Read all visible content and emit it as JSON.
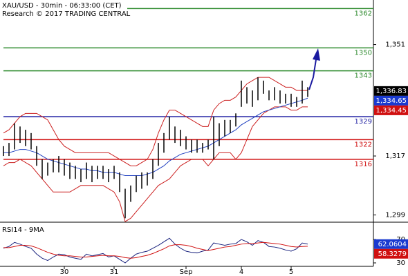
{
  "chart_data": [
    {
      "type": "ohlc",
      "title": "XAU/USD - 30min - 06:33:00 (CET)",
      "subtitle": "Research © 2017 TRADING CENTRAL",
      "ylim": [
        1296.8,
        1364.6
      ],
      "yticks": [
        {
          "value": 1351,
          "label": "1,351"
        },
        {
          "value": 1317,
          "label": "1,317"
        },
        {
          "value": 1299,
          "label": "1,299"
        }
      ],
      "high": [
        1320,
        1321,
        1327,
        1326,
        1325,
        1324,
        1320,
        1316,
        1315,
        1316,
        1317,
        1316,
        1315,
        1314,
        1313,
        1315,
        1314,
        1314,
        1314,
        1313,
        1314,
        1312,
        1307,
        1308,
        1311,
        1312,
        1312,
        1316,
        1321,
        1324,
        1329,
        1326,
        1325,
        1323,
        1322,
        1322,
        1321,
        1322,
        1329,
        1327,
        1328,
        1328,
        1330,
        1340,
        1338,
        1337,
        1341,
        1340,
        1337,
        1338,
        1337,
        1336,
        1336,
        1335,
        1340,
        1338
      ],
      "low": [
        1317,
        1317,
        1319,
        1321,
        1320,
        1319,
        1314,
        1310,
        1311,
        1312,
        1312,
        1311,
        1310,
        1310,
        1309,
        1310,
        1309,
        1310,
        1310,
        1309,
        1310,
        1306,
        1298,
        1303,
        1306,
        1307,
        1308,
        1310,
        1314,
        1318,
        1322,
        1321,
        1320,
        1319,
        1318,
        1318,
        1318,
        1319,
        1316,
        1320,
        1323,
        1324,
        1326,
        1332,
        1333,
        1332,
        1334,
        1336,
        1334,
        1334,
        1333,
        1333,
        1332,
        1332,
        1333,
        1335
      ],
      "bar_color": "#000000",
      "ma": {
        "color": "#2040c0",
        "values": [
          1318,
          1318,
          1318.5,
          1319,
          1319,
          1318.5,
          1318,
          1317,
          1316,
          1315.5,
          1315,
          1314.5,
          1314,
          1313.5,
          1313,
          1313,
          1312.5,
          1312.5,
          1312,
          1312,
          1312,
          1311.5,
          1311,
          1311,
          1311,
          1311,
          1311.5,
          1312,
          1313,
          1314,
          1315.5,
          1316.5,
          1317.5,
          1318,
          1318.5,
          1319,
          1319.5,
          1320,
          1321,
          1322,
          1323,
          1324,
          1325,
          1326.5,
          1327.5,
          1328.5,
          1329.5,
          1330.5,
          1331,
          1331.5,
          1332,
          1332.5,
          1333,
          1333.5,
          1334,
          1334.65
        ]
      },
      "upper_band": {
        "color": "#cc2020",
        "values": [
          1324,
          1325,
          1327,
          1329,
          1330,
          1330,
          1330,
          1329,
          1328,
          1325,
          1322,
          1320,
          1319,
          1318,
          1318,
          1318,
          1318,
          1318,
          1318,
          1318,
          1317,
          1316,
          1315,
          1314,
          1314,
          1315,
          1316,
          1319,
          1324,
          1328,
          1331,
          1331,
          1330,
          1329,
          1328,
          1327,
          1326,
          1326,
          1331,
          1333,
          1334,
          1334,
          1335,
          1337,
          1339,
          1340,
          1341,
          1341,
          1341,
          1340,
          1339,
          1338,
          1338,
          1337,
          1337,
          1337
        ]
      },
      "lower_band": {
        "color": "#cc2020",
        "values": [
          1314,
          1315,
          1315,
          1316,
          1315,
          1314,
          1312,
          1310,
          1308,
          1306,
          1306,
          1306,
          1306,
          1307,
          1308,
          1308,
          1308,
          1308,
          1308,
          1307,
          1306,
          1303,
          1297,
          1298,
          1300,
          1302,
          1304,
          1306,
          1308,
          1309,
          1310,
          1312,
          1314,
          1315,
          1316,
          1316,
          1316,
          1314,
          1316,
          1318,
          1318,
          1318,
          1316,
          1318,
          1322,
          1326,
          1328,
          1330,
          1331,
          1332,
          1332,
          1332,
          1331,
          1331,
          1332,
          1332
        ]
      },
      "levels": [
        {
          "value": 1362,
          "color": "#2e8b2e"
        },
        {
          "value": 1350,
          "color": "#2e8b2e"
        },
        {
          "value": 1343,
          "color": "#2e8b2e"
        },
        {
          "value": 1329,
          "color": "#1a1aa0"
        },
        {
          "value": 1322,
          "color": "#d01010"
        },
        {
          "value": 1316,
          "color": "#d01010"
        }
      ],
      "price_labels": [
        {
          "value": 1336.83,
          "label": "1,336.83",
          "color": "#000000"
        },
        {
          "value": 1334.65,
          "label": "1,334.65",
          "color": "#1a3ad0"
        },
        {
          "value": 1334.45,
          "label": "1,334.45",
          "color": "#d01010"
        }
      ]
    },
    {
      "type": "line",
      "title": "RSI14 - 9MA",
      "ylim": [
        25.3,
        95.9
      ],
      "yticks": [
        70,
        30
      ],
      "categories": [
        null,
        null,
        null,
        null,
        null,
        null,
        null,
        null,
        null,
        null,
        null,
        "30",
        null,
        null,
        null,
        null,
        null,
        null,
        null,
        null,
        "31",
        null,
        null,
        null,
        null,
        null,
        null,
        null,
        null,
        null,
        null,
        null,
        null,
        "Sep",
        null,
        null,
        null,
        null,
        null,
        null,
        null,
        null,
        null,
        "4",
        null,
        null,
        null,
        null,
        null,
        null,
        null,
        null,
        "5",
        null,
        null,
        null
      ],
      "series": [
        {
          "color": "#1a237e",
          "values": [
            55,
            58,
            65,
            62,
            58,
            55,
            45,
            38,
            34,
            40,
            45,
            44,
            40,
            38,
            36,
            45,
            42,
            44,
            46,
            40,
            42,
            36,
            30,
            38,
            45,
            48,
            50,
            55,
            60,
            66,
            72,
            62,
            55,
            50,
            48,
            47,
            50,
            52,
            64,
            62,
            60,
            62,
            63,
            70,
            66,
            60,
            68,
            65,
            58,
            57,
            55,
            52,
            50,
            54,
            64,
            62.0604
          ]
        },
        {
          "color": "#d01010",
          "values": [
            56,
            56,
            58,
            60,
            60,
            59,
            56,
            52,
            48,
            45,
            43,
            42,
            42,
            41,
            40,
            40,
            41,
            42,
            43,
            42,
            42,
            41,
            39,
            38,
            39,
            41,
            43,
            46,
            50,
            54,
            59,
            61,
            61,
            60,
            58,
            55,
            53,
            51,
            53,
            55,
            57,
            58,
            60,
            62,
            63,
            63,
            64,
            65,
            64,
            63,
            62,
            60,
            58,
            57,
            58,
            58.3279
          ]
        }
      ],
      "last_labels": [
        {
          "value": 62.0604,
          "color": "#1a3ad0"
        },
        {
          "value": 58.3279,
          "color": "#d01010"
        }
      ]
    }
  ]
}
